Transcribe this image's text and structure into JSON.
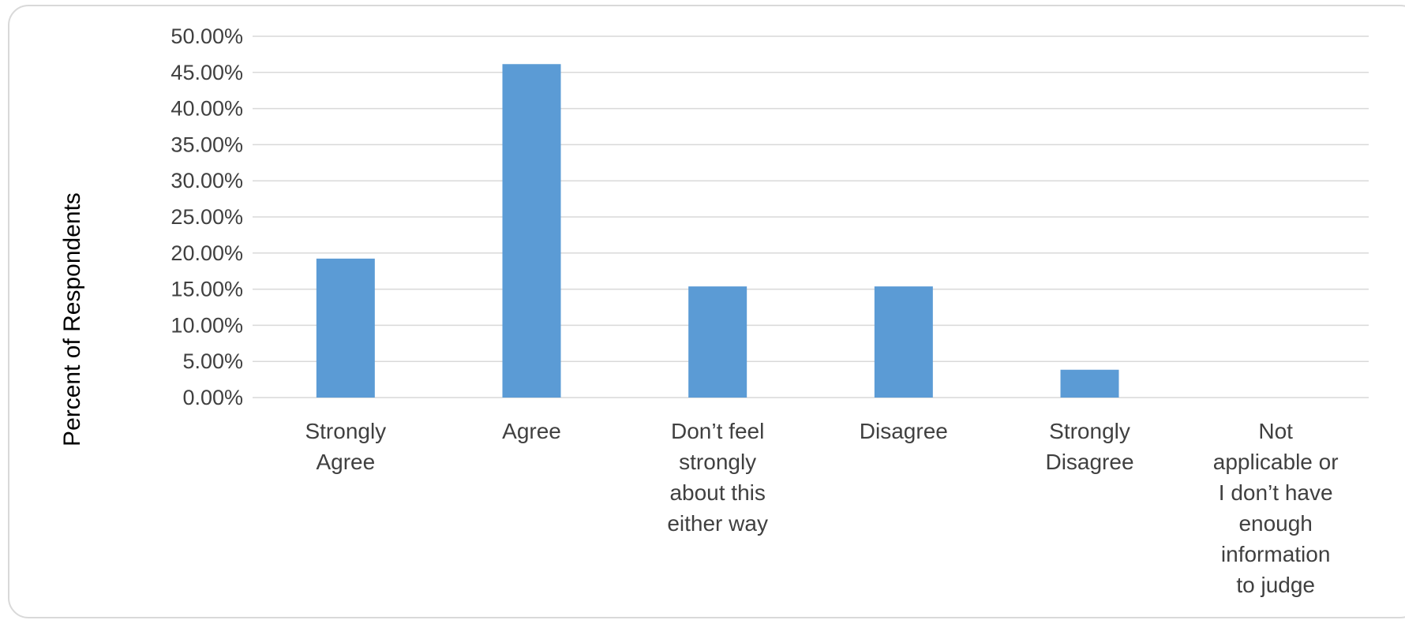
{
  "chart_data": {
    "type": "bar",
    "title": "",
    "xlabel": "",
    "ylabel": "Percent of Respondents",
    "ylim": [
      0,
      50
    ],
    "yticks": [
      "0.00%",
      "5.00%",
      "10.00%",
      "15.00%",
      "20.00%",
      "25.00%",
      "30.00%",
      "35.00%",
      "40.00%",
      "45.00%",
      "50.00%"
    ],
    "grid": true,
    "legend": "none",
    "bar_color": "#5b9bd5",
    "categories": [
      [
        "Strongly",
        "Agree"
      ],
      [
        "Agree"
      ],
      [
        "Don’t feel",
        "strongly",
        "about this",
        "either way"
      ],
      [
        "Disagree"
      ],
      [
        "Strongly",
        "Disagree"
      ],
      [
        "Not",
        "applicable or",
        "I don’t have",
        "enough",
        "information",
        "to judge"
      ]
    ],
    "values": [
      19.23,
      46.15,
      15.38,
      15.38,
      3.85,
      0
    ]
  }
}
